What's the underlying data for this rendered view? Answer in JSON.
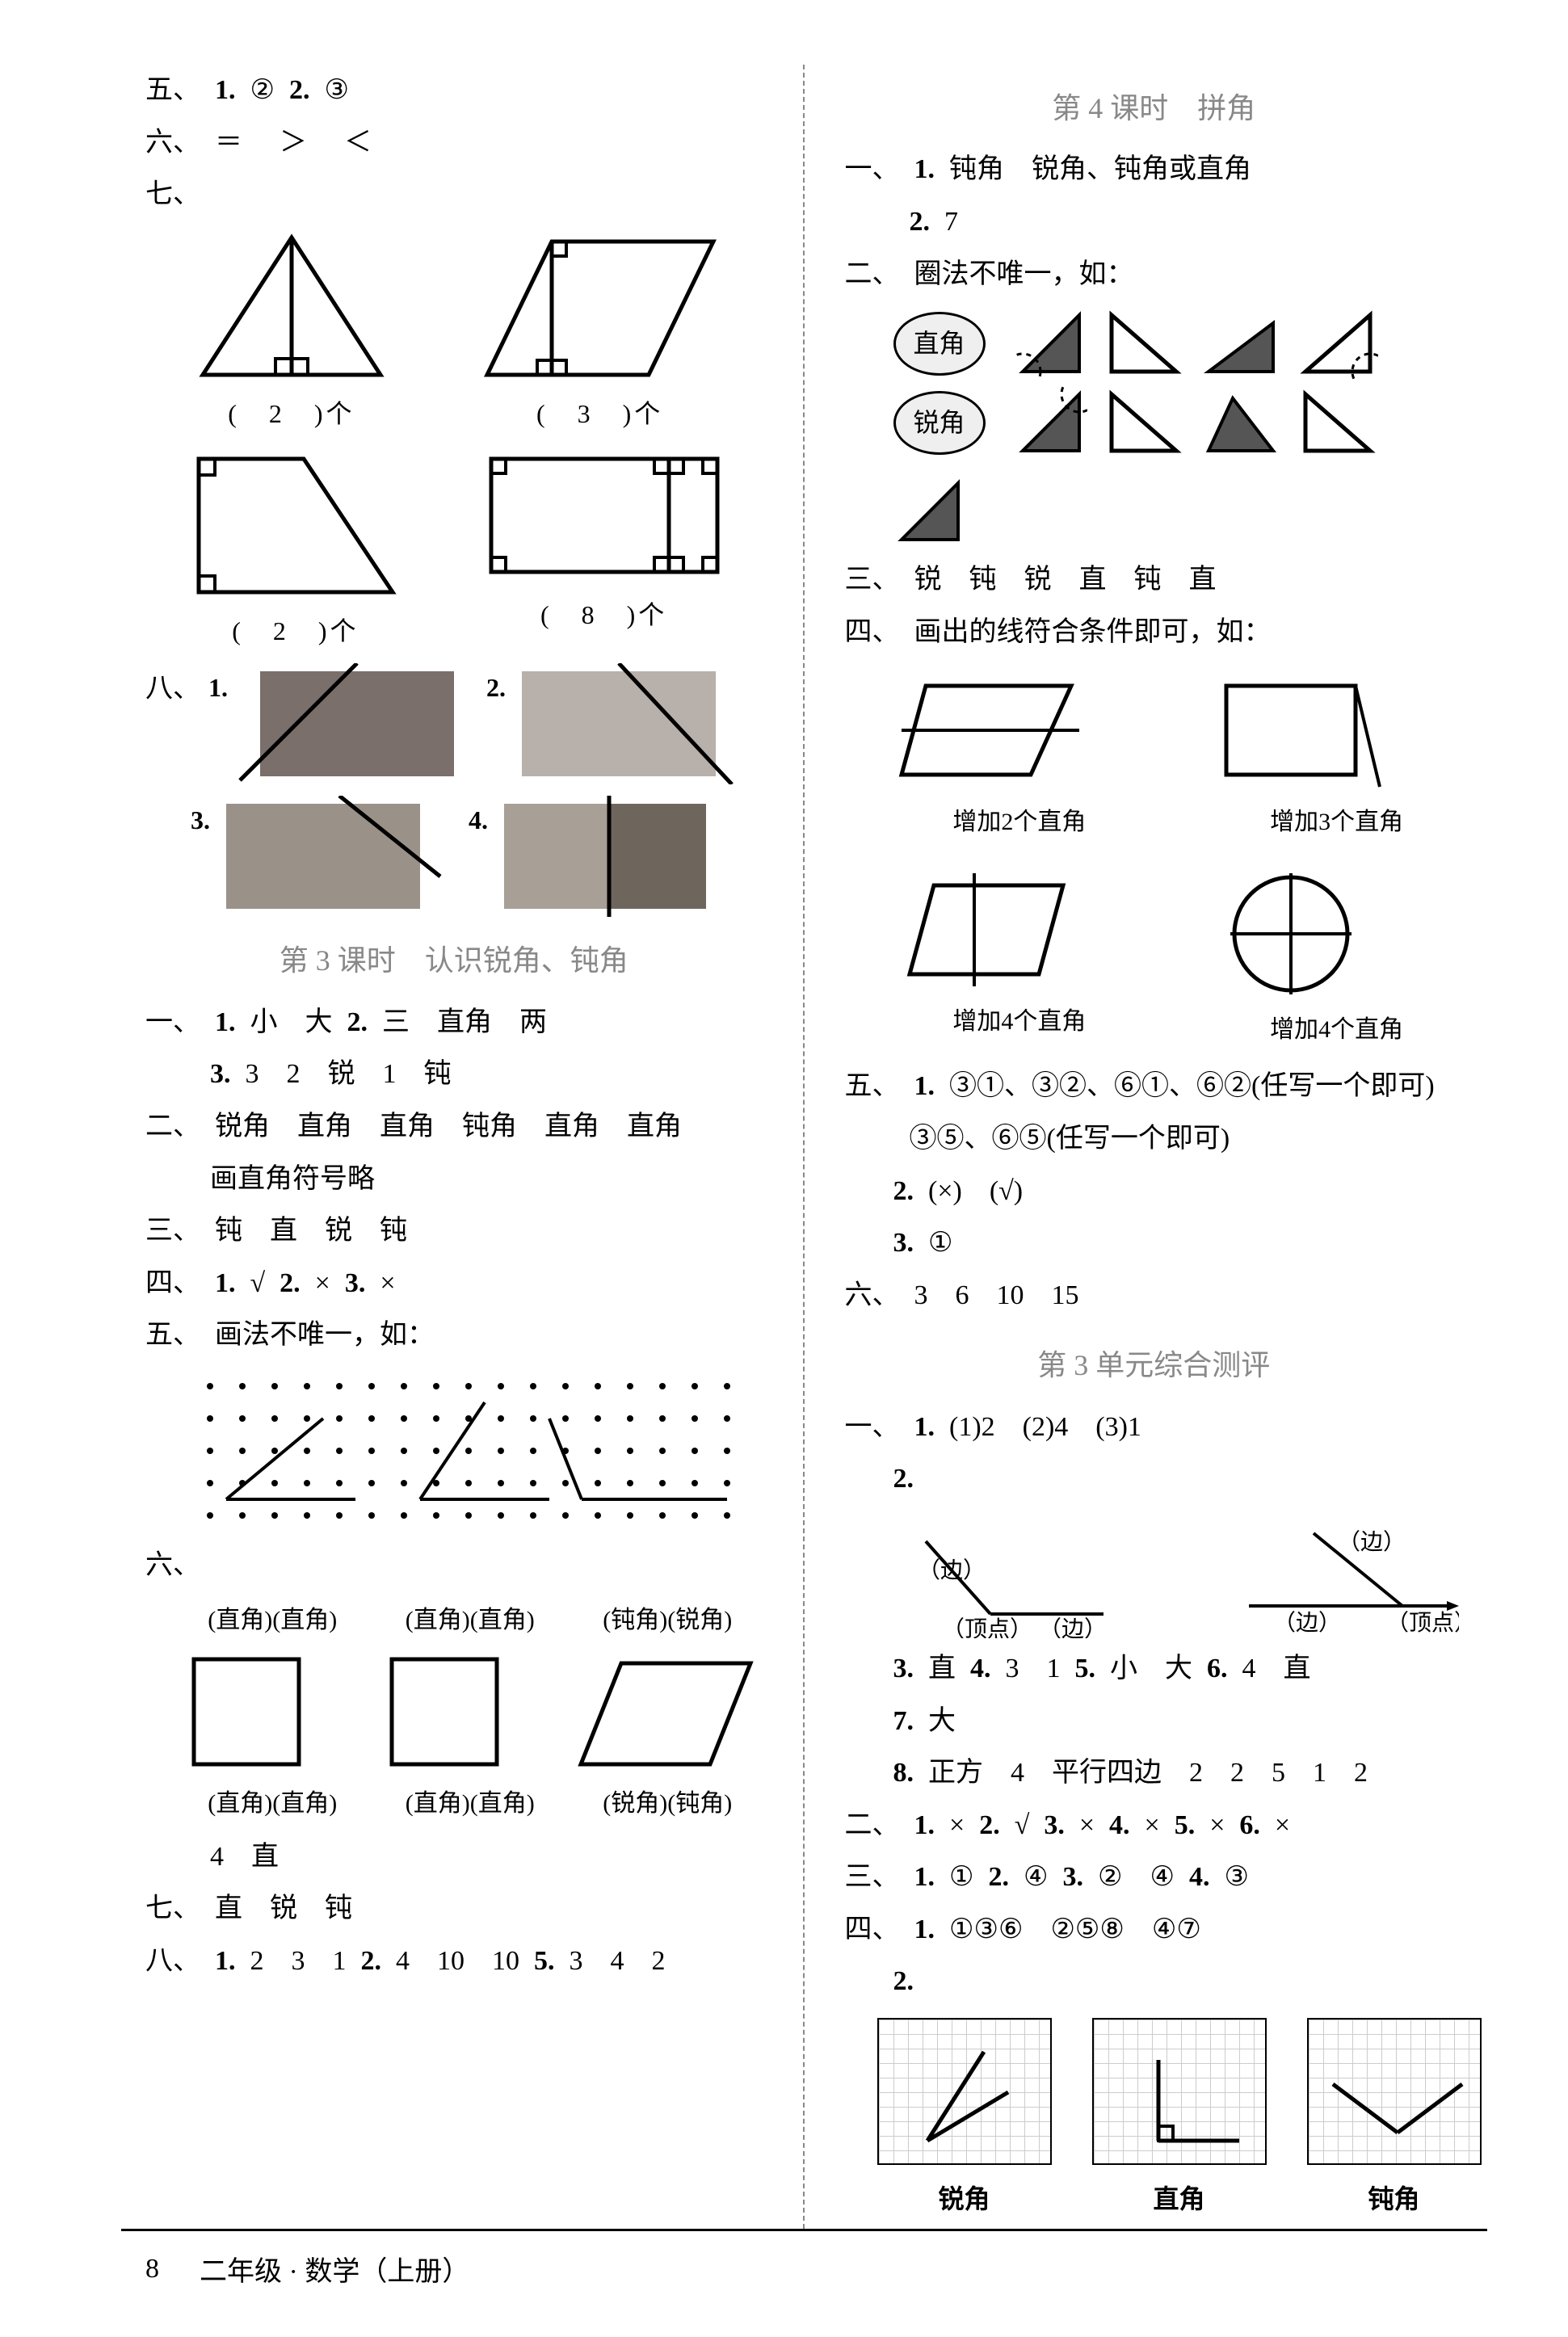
{
  "colors": {
    "text": "#000000",
    "bg": "#ffffff",
    "muted": "#888888",
    "rect1": "#7a6f6a",
    "rect2": "#b8b0aa",
    "rect3": "#9a9188",
    "rect4l": "#a89f96",
    "rect4r": "#6e655d",
    "grid": "#cccccc",
    "ovalFill": "#efefef"
  },
  "left": {
    "l5": {
      "label": "五、",
      "i1": "1.",
      "a1": "②",
      "i2": "2.",
      "a2": "③"
    },
    "l6": {
      "label": "六、",
      "v": "＝　＞　＜"
    },
    "l7": {
      "label": "七、",
      "tri_cap": "(　2　)个",
      "para_cap": "(　3　)个",
      "trap_cap": "(　2　)个",
      "rect_cap": "(　8　)个"
    },
    "l8": {
      "label": "八、",
      "n1": "1.",
      "n2": "2.",
      "n3": "3.",
      "n4": "4."
    },
    "title3": "第 3 课时　认识锐角、钝角",
    "s1": {
      "label": "一、",
      "i1": "1.",
      "a1": "小　大",
      "i2": "2.",
      "a2": "三　直角　两",
      "i3": "3.",
      "a3": "3　2　锐　1　钝"
    },
    "s2": {
      "label": "二、",
      "a": "锐角　直角　直角　钝角　直角　直角",
      "b": "画直角符号略"
    },
    "s3": {
      "label": "三、",
      "a": "钝　直　锐　钝"
    },
    "s4": {
      "label": "四、",
      "i1": "1.",
      "a1": "√",
      "i2": "2.",
      "a2": "×",
      "i3": "3.",
      "a3": "×"
    },
    "s5": {
      "label": "五、",
      "a": "画法不唯一，如："
    },
    "s6": {
      "label": "六、",
      "top1": "(直角)(直角)",
      "top2": "(直角)(直角)",
      "top3": "(钝角)(锐角)",
      "bot1": "(直角)(直角)",
      "bot2": "(直角)(直角)",
      "bot3": "(锐角)(钝角)",
      "sum": "4　直"
    },
    "s7": {
      "label": "七、",
      "a": "直　锐　钝"
    },
    "s8": {
      "label": "八、",
      "i1": "1.",
      "a1": "2　3　1",
      "i2": "2.",
      "a2": "4　10　10",
      "i3": "5.",
      "a3": "3　4　2"
    }
  },
  "right": {
    "title4": "第 4 课时　拼角",
    "r1": {
      "label": "一、",
      "i1": "1.",
      "a1": "钝角　锐角、钝角或直角",
      "i2": "2.",
      "a2": "7"
    },
    "r2": {
      "label": "二、",
      "a": "圈法不唯一，如：",
      "ov1": "直角",
      "ov2": "锐角"
    },
    "r3": {
      "label": "三、",
      "a": "锐　钝　锐　直　钝　直"
    },
    "r4": {
      "label": "四、",
      "a": "画出的线符合条件即可，如：",
      "c1": "增加2个直角",
      "c2": "增加3个直角",
      "c3": "增加4个直角",
      "c4": "增加4个直角"
    },
    "r5": {
      "label": "五、",
      "i1": "1.",
      "a1": "③①、③②、⑥①、⑥②(任写一个即可)",
      "a1b": "③⑤、⑥⑤(任写一个即可)",
      "i2": "2.",
      "a2": "(×)　(√)",
      "i3": "3.",
      "a3": "①"
    },
    "r6": {
      "label": "六、",
      "a": "3　6　10　15"
    },
    "titleU": "第 3 单元综合测评",
    "u1": {
      "label": "一、",
      "i1": "1.",
      "a1": "(1)2　(2)4　(3)1",
      "i2": "2.",
      "lab_b1": "（边）",
      "lab_v1": "（顶点）",
      "lab_b2": "（边）",
      "lab_b3": "（边）",
      "lab_b4": "（边）",
      "lab_v2": "（顶点）",
      "i3": "3.",
      "a3": "直",
      "i4": "4.",
      "a4": "3　1",
      "i5": "5.",
      "a5": "小　大",
      "i6": "6.",
      "a6": "4　直",
      "i7": "7.",
      "a7": "大",
      "i8": "8.",
      "a8": "正方　4　平行四边　2　2　5　1　2"
    },
    "u2": {
      "label": "二、",
      "i1": "1.",
      "a1": "×",
      "i2": "2.",
      "a2": "√",
      "i3": "3.",
      "a3": "×",
      "i4": "4.",
      "a4": "×",
      "i5": "5.",
      "a5": "×",
      "i6": "6.",
      "a6": "×"
    },
    "u3": {
      "label": "三、",
      "i1": "1.",
      "a1": "①",
      "i2": "2.",
      "a2": "④",
      "i3": "3.",
      "a3": "②　④",
      "i4": "4.",
      "a4": "③"
    },
    "u4": {
      "label": "四、",
      "i1": "1.",
      "a1": "①③⑥　②⑤⑧　④⑦",
      "i2": "2.",
      "g1": "锐角",
      "g2": "直角",
      "g3": "钝角"
    }
  },
  "footer": {
    "page": "8",
    "text": "二年级 · 数学（上册）"
  }
}
